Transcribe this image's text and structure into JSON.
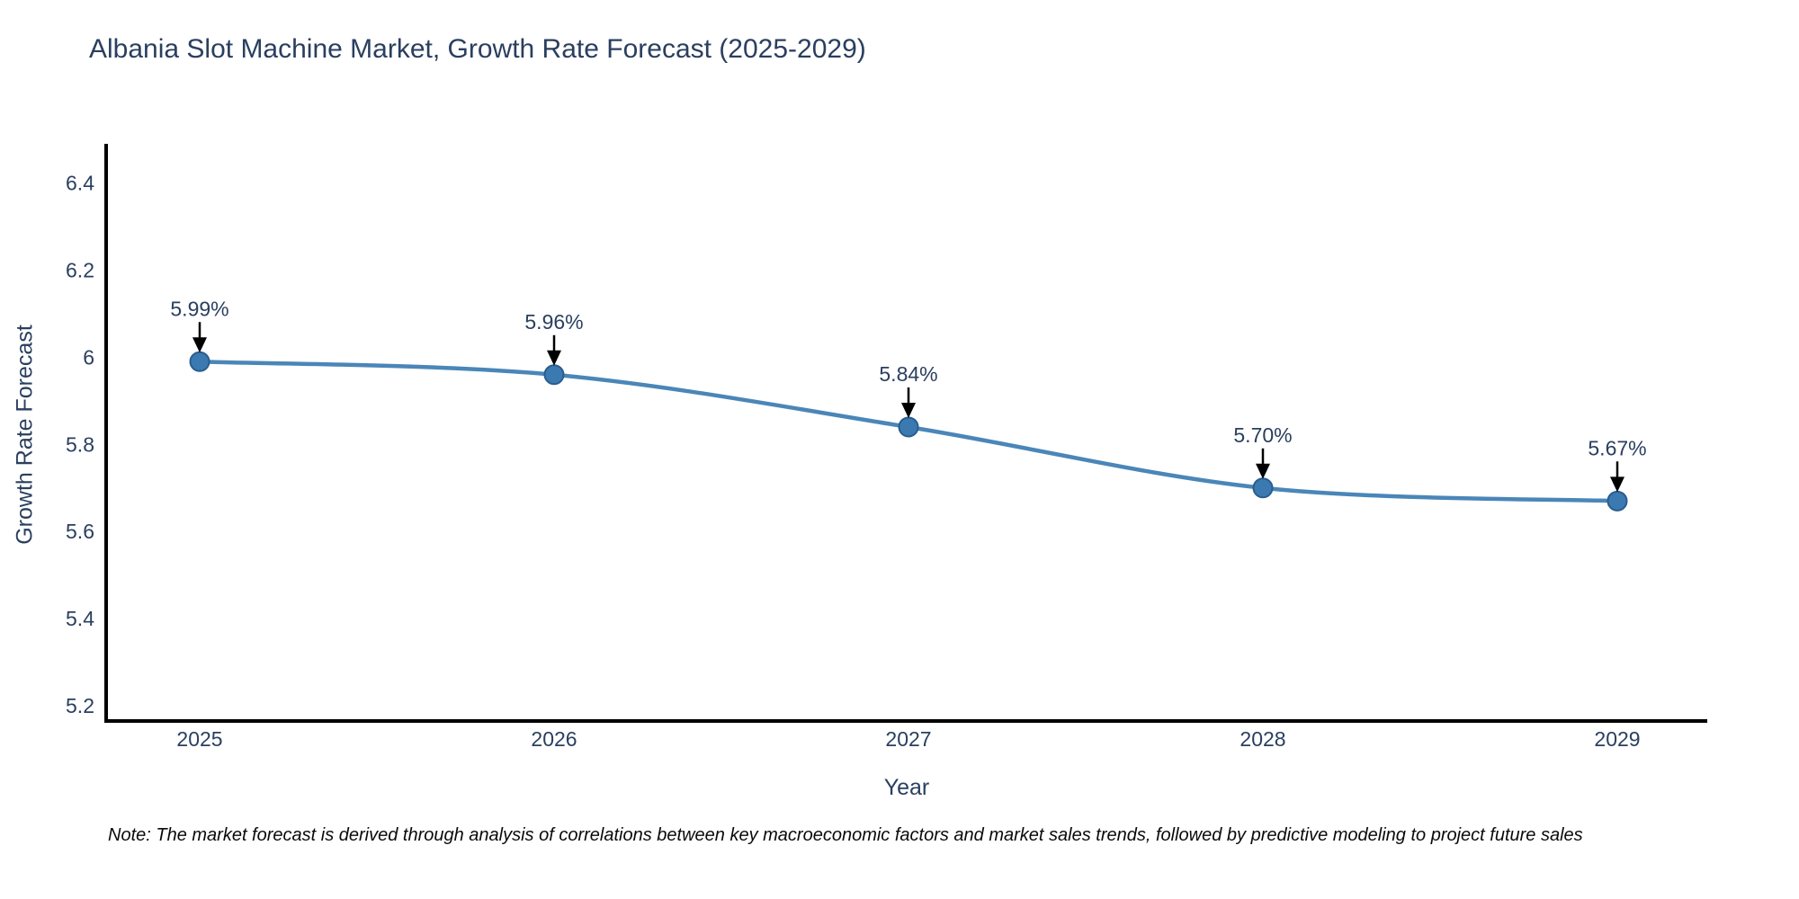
{
  "chart_data": {
    "type": "line",
    "title": "Albania Slot Machine Market, Growth Rate Forecast (2025-2029)",
    "xlabel": "Year",
    "ylabel": "Growth Rate Forecast",
    "x": [
      2025,
      2026,
      2027,
      2028,
      2029
    ],
    "y": [
      5.99,
      5.96,
      5.84,
      5.7,
      5.67
    ],
    "point_labels": [
      "5.99%",
      "5.96%",
      "5.84%",
      "5.70%",
      "5.67%"
    ],
    "xtick_labels": [
      "2025",
      "2026",
      "2027",
      "2028",
      "2029"
    ],
    "ytick_values": [
      5.2,
      5.4,
      5.6,
      5.8,
      6.0,
      6.2,
      6.4
    ],
    "ytick_labels": [
      "5.2",
      "5.4",
      "5.6",
      "5.8",
      "6",
      "6.2",
      "6.4"
    ],
    "ylim": [
      5.165,
      6.49
    ],
    "grid": false,
    "legend_position": "none",
    "line_shape": "spline",
    "annotations_have_arrows": true,
    "colors": {
      "line": "#4a86b8",
      "marker_fill": "#3b79b1",
      "marker_edge": "#2a5d8f",
      "axis": "#000000",
      "text": "#2a3f5f",
      "arrow": "#000000"
    }
  },
  "footnote": "Note: The market forecast is derived through analysis of correlations between key macroeconomic factors and market sales trends, followed by predictive modeling to project future sales"
}
